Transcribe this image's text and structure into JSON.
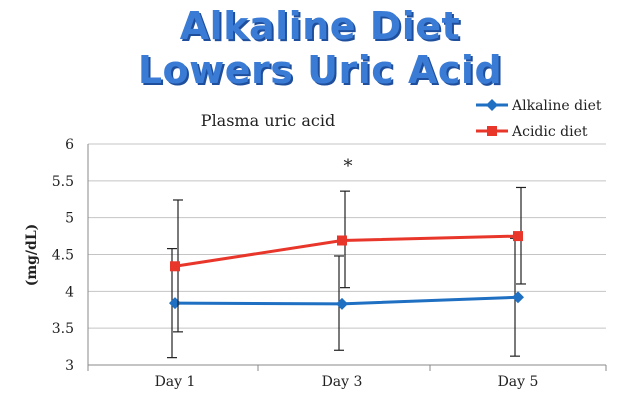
{
  "headline": {
    "line1": "Alkaline Diet",
    "line2": "Lowers Uric Acid"
  },
  "chart_data": {
    "type": "line",
    "title": "Plasma uric acid",
    "xlabel": "",
    "ylabel": "(mg/dL)",
    "categories": [
      "Day 1",
      "Day 3",
      "Day 5"
    ],
    "ylim": [
      3,
      6
    ],
    "yticks": [
      "3",
      "3.5",
      "4",
      "4.5",
      "5",
      "5.5",
      "6"
    ],
    "grid": true,
    "legend_position": "top-right",
    "annotation": {
      "text": "*",
      "category": "Day 3"
    },
    "series": [
      {
        "name": "Alkaline diet",
        "color": "#1f6fc2",
        "marker": "diamond",
        "values": [
          3.84,
          3.83,
          3.92
        ],
        "error_low": [
          3.1,
          3.2,
          3.12
        ],
        "error_high": [
          4.58,
          4.48,
          4.72
        ]
      },
      {
        "name": "Acidic diet",
        "color": "#e8362b",
        "marker": "square",
        "values": [
          4.34,
          4.69,
          4.75
        ],
        "error_low": [
          3.45,
          4.05,
          4.1
        ],
        "error_high": [
          5.24,
          5.36,
          5.41
        ]
      }
    ]
  }
}
